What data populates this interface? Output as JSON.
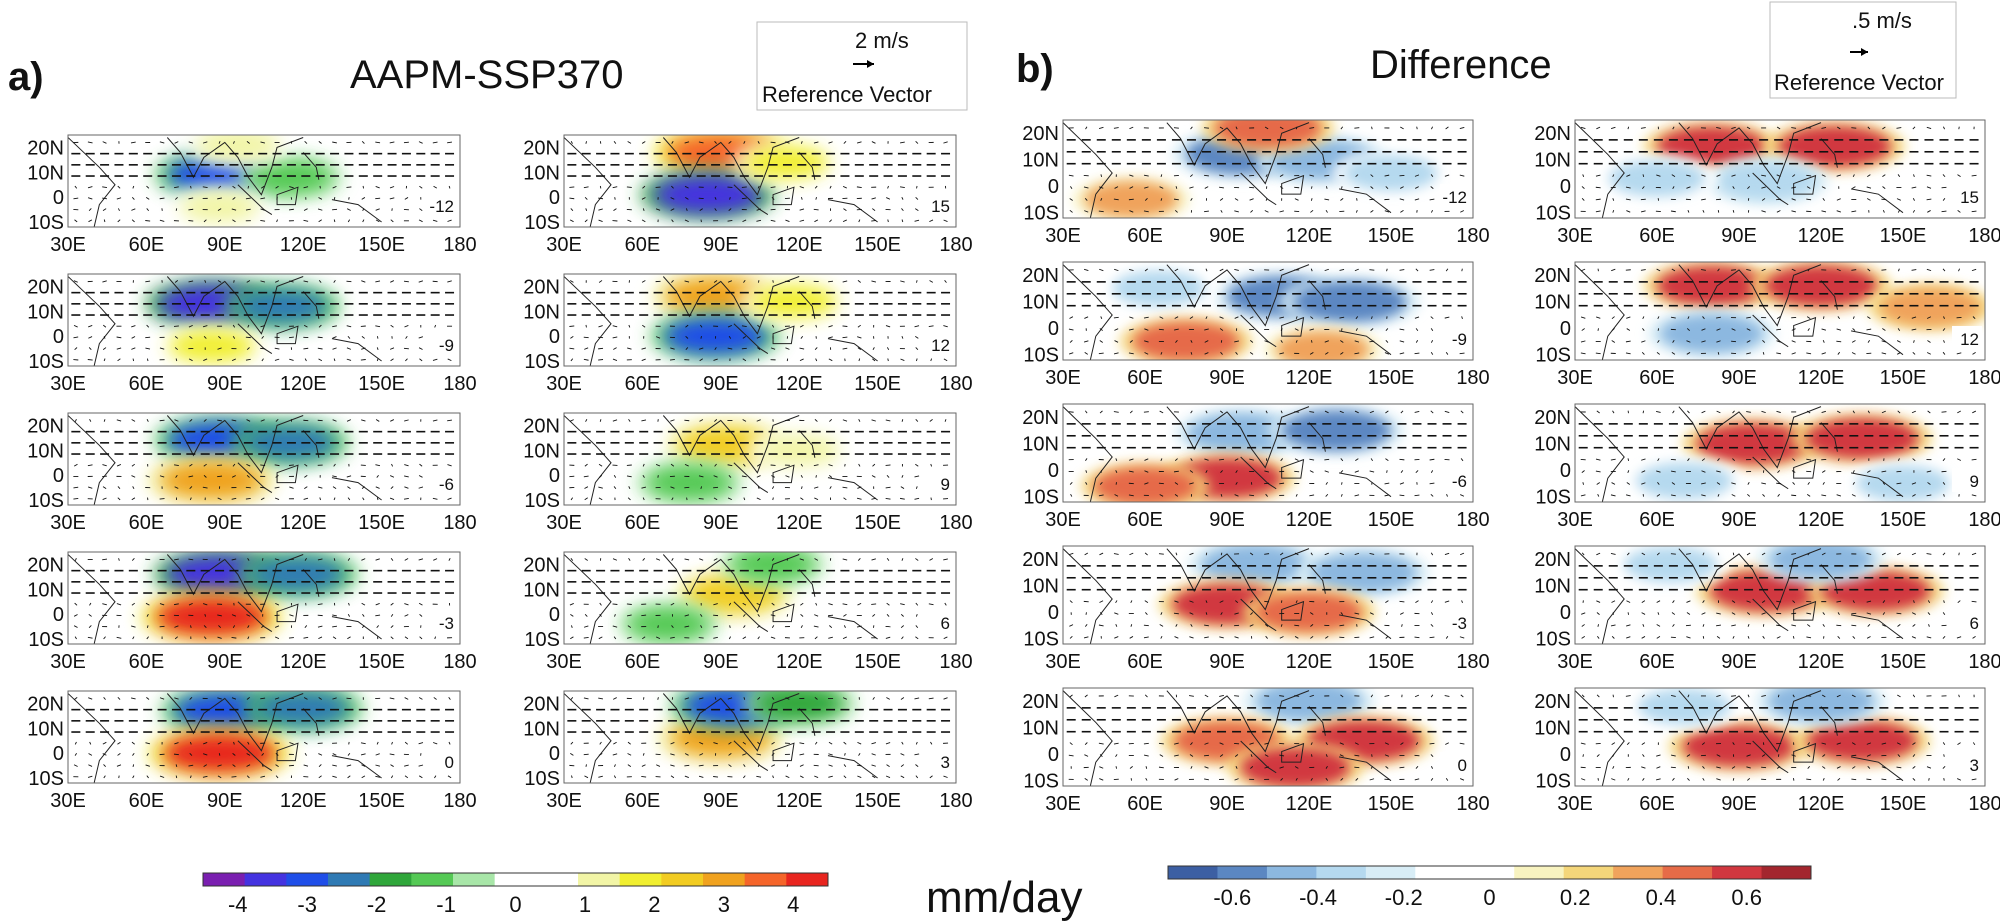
{
  "chart_data": {
    "type": "heatmap",
    "units_label": "mm/day",
    "panels": [
      {
        "panel_label": "a)",
        "title": "AAPM-SSP370",
        "reference_vector": {
          "magnitude_label": "2 m/s",
          "caption": "Reference Vector"
        },
        "colorbar": {
          "colors": [
            "#7a1fb0",
            "#4433e0",
            "#1f4ee8",
            "#2f7ab4",
            "#2fa63a",
            "#55c955",
            "#a8e6a8",
            "#ffffff",
            "#ffffff",
            "#f2f5a6",
            "#f1ef30",
            "#f2cc22",
            "#f0a21f",
            "#f5652a",
            "#e8251f"
          ],
          "tick_labels": [
            "-4",
            "-3",
            "-2",
            "-1",
            "0",
            "1",
            "2",
            "3",
            "4"
          ]
        },
        "lat_tick_labels": [
          "20N",
          "10N",
          "0",
          "10S"
        ],
        "lon_tick_labels": [
          "30E",
          "60E",
          "90E",
          "120E",
          "150E",
          "180"
        ],
        "maps": [
          {
            "lag": "-12",
            "blobs": [
              {
                "lon": 88,
                "lat": 9,
                "value": -3.2
              },
              {
                "lon": 115,
                "lat": 8,
                "value": -1.3
              },
              {
                "lon": 95,
                "lat": 21,
                "value": 1.3
              },
              {
                "lon": 88,
                "lat": -4,
                "value": 0.9
              }
            ]
          },
          {
            "lag": "-9",
            "blobs": [
              {
                "lon": 85,
                "lat": 13,
                "value": -3.4
              },
              {
                "lon": 112,
                "lat": 12,
                "value": -2.2
              },
              {
                "lon": 85,
                "lat": -4,
                "value": 1.6
              }
            ]
          },
          {
            "lag": "-6",
            "blobs": [
              {
                "lon": 88,
                "lat": 14,
                "value": -3.3
              },
              {
                "lon": 115,
                "lat": 13,
                "value": -2.3
              },
              {
                "lon": 85,
                "lat": -2,
                "value": 3.2
              }
            ]
          },
          {
            "lag": "-3",
            "blobs": [
              {
                "lon": 88,
                "lat": 16,
                "value": -3.4
              },
              {
                "lon": 118,
                "lat": 16,
                "value": -2.5
              },
              {
                "lon": 85,
                "lat": -1,
                "value": 4.1
              }
            ]
          },
          {
            "lag": "0",
            "blobs": [
              {
                "lon": 90,
                "lat": 17,
                "value": -3.0
              },
              {
                "lon": 120,
                "lat": 18,
                "value": -2.4
              },
              {
                "lon": 88,
                "lat": 0,
                "value": 4.2
              }
            ]
          },
          {
            "lag": "15",
            "blobs": [
              {
                "lon": 90,
                "lat": 18,
                "value": 3.6
              },
              {
                "lon": 85,
                "lat": 1,
                "value": -3.6
              },
              {
                "lon": 115,
                "lat": 14,
                "value": 1.5
              }
            ]
          },
          {
            "lag": "12",
            "blobs": [
              {
                "lon": 88,
                "lat": 16,
                "value": 3.0
              },
              {
                "lon": 88,
                "lat": 0,
                "value": -3.2
              },
              {
                "lon": 118,
                "lat": 14,
                "value": 1.6
              }
            ]
          },
          {
            "lag": "9",
            "blobs": [
              {
                "lon": 92,
                "lat": 12,
                "value": 2.4
              },
              {
                "lon": 78,
                "lat": -3,
                "value": -1.4
              },
              {
                "lon": 120,
                "lat": 10,
                "value": 1.2
              }
            ]
          },
          {
            "lag": "6",
            "blobs": [
              {
                "lon": 95,
                "lat": 8,
                "value": 2.3
              },
              {
                "lon": 110,
                "lat": 20,
                "value": -1.2
              },
              {
                "lon": 70,
                "lat": -4,
                "value": -1.0
              }
            ]
          },
          {
            "lag": "3",
            "blobs": [
              {
                "lon": 90,
                "lat": 6,
                "value": 3.0
              },
              {
                "lon": 95,
                "lat": 19,
                "value": -3.0
              },
              {
                "lon": 120,
                "lat": 20,
                "value": -2.0
              }
            ]
          }
        ]
      },
      {
        "panel_label": "b)",
        "title": "Difference",
        "reference_vector": {
          "magnitude_label": ".5 m/s",
          "caption": "Reference Vector"
        },
        "colorbar": {
          "colors": [
            "#3c5fa3",
            "#5b87c2",
            "#8cb8e0",
            "#b5d9ef",
            "#d8edf6",
            "#ffffff",
            "#ffffff",
            "#f8f3c0",
            "#f4d67a",
            "#f0a35c",
            "#e66b48",
            "#d1373f",
            "#a3262e"
          ],
          "tick_labels": [
            "-0.6",
            "-0.4",
            "-0.2",
            "0",
            "0.2",
            "0.4",
            "0.6"
          ]
        },
        "lat_tick_labels": [
          "20N",
          "10N",
          "0",
          "10S"
        ],
        "lon_tick_labels": [
          "30E",
          "60E",
          "90E",
          "120E",
          "150E",
          "180"
        ],
        "maps": [
          {
            "lag": "-12",
            "blobs": [
              {
                "lon": 95,
                "lat": 12,
                "value": -0.55
              },
              {
                "lon": 125,
                "lat": 10,
                "value": -0.5
              },
              {
                "lon": 150,
                "lat": 5,
                "value": -0.3
              },
              {
                "lon": 105,
                "lat": 22,
                "value": 0.5
              },
              {
                "lon": 55,
                "lat": -5,
                "value": 0.3
              }
            ]
          },
          {
            "lag": "-9",
            "blobs": [
              {
                "lon": 110,
                "lat": 12,
                "value": -0.55
              },
              {
                "lon": 135,
                "lat": 10,
                "value": -0.6
              },
              {
                "lon": 65,
                "lat": 15,
                "value": -0.3
              },
              {
                "lon": 75,
                "lat": -5,
                "value": 0.5
              },
              {
                "lon": 125,
                "lat": -8,
                "value": 0.3
              }
            ]
          },
          {
            "lag": "-6",
            "blobs": [
              {
                "lon": 95,
                "lat": 14,
                "value": -0.5
              },
              {
                "lon": 130,
                "lat": 15,
                "value": -0.55
              },
              {
                "lon": 90,
                "lat": -3,
                "value": 0.55
              },
              {
                "lon": 60,
                "lat": -6,
                "value": 0.45
              }
            ]
          },
          {
            "lag": "-3",
            "blobs": [
              {
                "lon": 100,
                "lat": 18,
                "value": -0.5
              },
              {
                "lon": 140,
                "lat": 15,
                "value": -0.5
              },
              {
                "lon": 90,
                "lat": 3,
                "value": 0.55
              },
              {
                "lon": 120,
                "lat": 0,
                "value": 0.5
              }
            ]
          },
          {
            "lag": "0",
            "blobs": [
              {
                "lon": 120,
                "lat": 20,
                "value": -0.5
              },
              {
                "lon": 140,
                "lat": 5,
                "value": 0.6
              },
              {
                "lon": 90,
                "lat": 5,
                "value": 0.5
              },
              {
                "lon": 115,
                "lat": -5,
                "value": 0.55
              }
            ]
          },
          {
            "lag": "15",
            "blobs": [
              {
                "lon": 80,
                "lat": 15,
                "value": 0.55
              },
              {
                "lon": 125,
                "lat": 15,
                "value": 0.6
              },
              {
                "lon": 100,
                "lat": 2,
                "value": -0.4
              },
              {
                "lon": 60,
                "lat": 3,
                "value": -0.35
              }
            ]
          },
          {
            "lag": "12",
            "blobs": [
              {
                "lon": 80,
                "lat": 16,
                "value": 0.55
              },
              {
                "lon": 120,
                "lat": 16,
                "value": 0.6
              },
              {
                "lon": 80,
                "lat": -2,
                "value": -0.45
              },
              {
                "lon": 160,
                "lat": 8,
                "value": 0.4
              }
            ]
          },
          {
            "lag": "9",
            "blobs": [
              {
                "lon": 95,
                "lat": 10,
                "value": 0.6
              },
              {
                "lon": 135,
                "lat": 12,
                "value": 0.6
              },
              {
                "lon": 70,
                "lat": -4,
                "value": -0.35
              },
              {
                "lon": 150,
                "lat": -5,
                "value": -0.3
              }
            ]
          },
          {
            "lag": "6",
            "blobs": [
              {
                "lon": 100,
                "lat": 8,
                "value": 0.6
              },
              {
                "lon": 140,
                "lat": 8,
                "value": 0.55
              },
              {
                "lon": 120,
                "lat": 20,
                "value": -0.45
              },
              {
                "lon": 65,
                "lat": 18,
                "value": -0.3
              }
            ]
          },
          {
            "lag": "3",
            "blobs": [
              {
                "lon": 90,
                "lat": 3,
                "value": 0.6
              },
              {
                "lon": 135,
                "lat": 5,
                "value": 0.55
              },
              {
                "lon": 120,
                "lat": 20,
                "value": -0.5
              },
              {
                "lon": 70,
                "lat": 18,
                "value": -0.3
              }
            ]
          }
        ]
      }
    ]
  }
}
